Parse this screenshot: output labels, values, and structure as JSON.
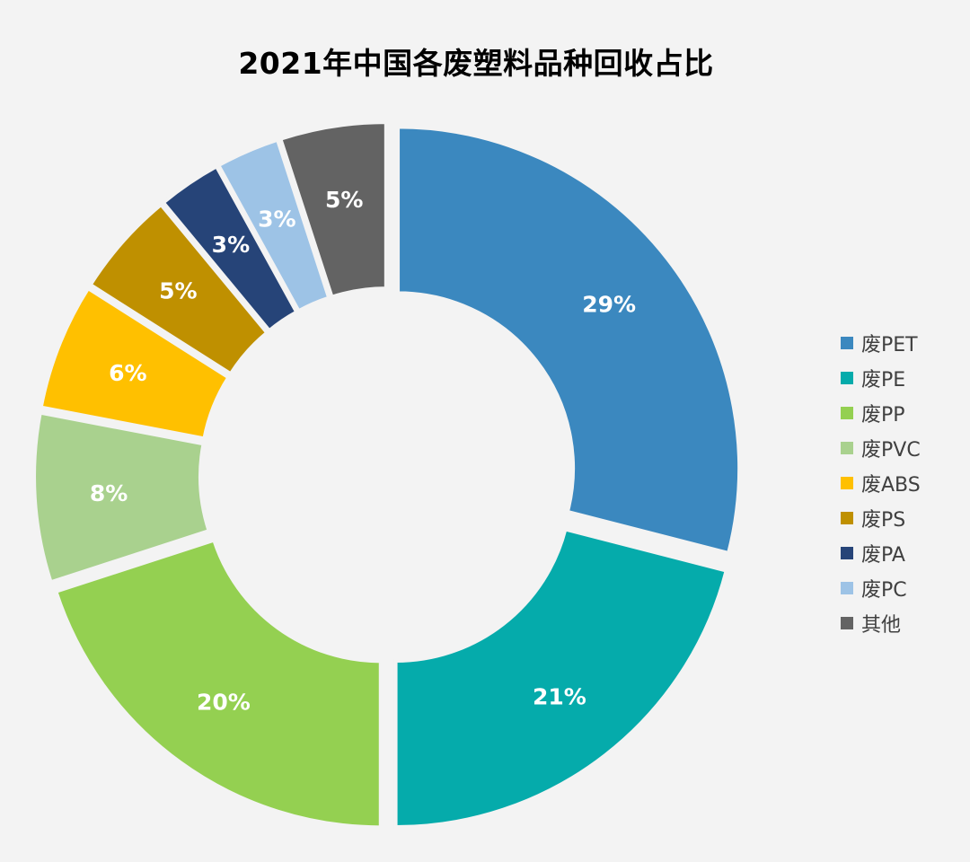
{
  "chart_data": {
    "type": "pie",
    "style": "donut",
    "title": "2021年中国各废塑料品种回收占比",
    "categories": [
      "废PET",
      "废PE",
      "废PP",
      "废PVC",
      "废ABS",
      "废PS",
      "废PA",
      "废PC",
      "其他"
    ],
    "values": [
      29,
      21,
      20,
      8,
      6,
      5,
      3,
      3,
      5
    ],
    "value_labels": [
      "29%",
      "21%",
      "20%",
      "8%",
      "6%",
      "5%",
      "3%",
      "3%",
      "5%"
    ],
    "colors": [
      "#3b88bf",
      "#05abab",
      "#94d051",
      "#a9d18e",
      "#ffc000",
      "#bf9000",
      "#264478",
      "#9dc3e6",
      "#636363"
    ],
    "legend": "right",
    "unit": "%"
  }
}
